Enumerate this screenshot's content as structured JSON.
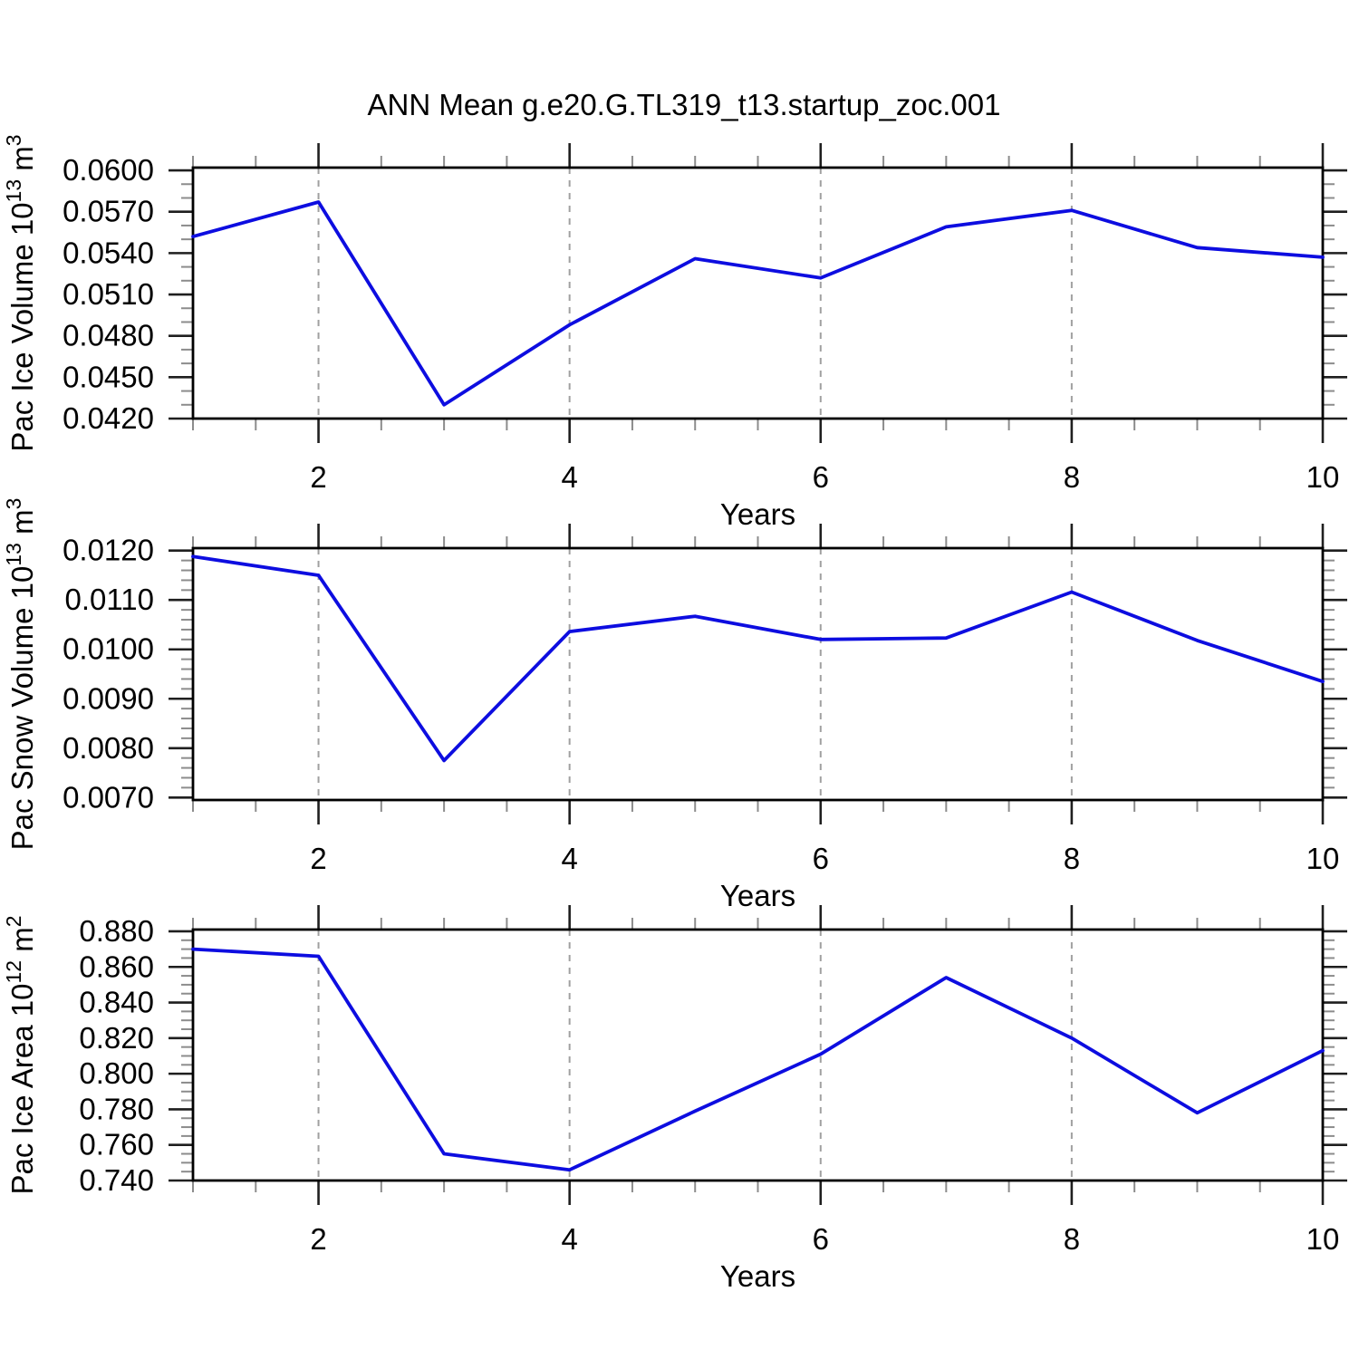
{
  "title": "ANN Mean g.e20.G.TL319_t13.startup_zoc.001",
  "colors": {
    "line": "#0d0de0",
    "plot_border": "#000000",
    "major_tick": "#1f1f1f",
    "minor_tick": "#8c8c8c",
    "gridline": "#a0a0a0",
    "text": "#000000",
    "background": "#ffffff"
  },
  "chart_data": [
    {
      "type": "line",
      "name": "pac-ice-volume",
      "ylabel": "Pac Ice Volume 10^13 m^3",
      "ylabel_parts": {
        "base": "Pac Ice Volume 10",
        "exp": "13",
        "unit": " m",
        "unit_exp": "3"
      },
      "xlabel": "Years",
      "x": [
        1,
        2,
        3,
        4,
        5,
        6,
        7,
        8,
        9,
        10
      ],
      "values": [
        0.0552,
        0.0577,
        0.043,
        0.0488,
        0.0536,
        0.0522,
        0.0559,
        0.0571,
        0.0544,
        0.0537
      ],
      "xlim": [
        1,
        10
      ],
      "ylim": [
        0.042,
        0.0602
      ],
      "xticks": [
        2,
        4,
        6,
        8,
        10
      ],
      "xtick_labels": [
        "2",
        "4",
        "6",
        "8",
        "10"
      ],
      "x_minor_step": 0.5,
      "ytick_values": [
        0.06,
        0.057,
        0.054,
        0.051,
        0.048,
        0.045,
        0.042
      ],
      "ytick_labels": [
        "0.0600",
        "0.0570",
        "0.0540",
        "0.0510",
        "0.0480",
        "0.0450",
        "0.0420"
      ],
      "y_minor_step": 0.001,
      "gridlines_x": [
        2,
        4,
        6,
        8
      ],
      "grid": "vertical-dashed",
      "legend": "none"
    },
    {
      "type": "line",
      "name": "pac-snow-volume",
      "ylabel": "Pac Snow Volume 10^13 m^3",
      "ylabel_parts": {
        "base": "Pac Snow Volume 10",
        "exp": "13",
        "unit": " m",
        "unit_exp": "3"
      },
      "xlabel": "Years",
      "x": [
        1,
        2,
        3,
        4,
        5,
        6,
        7,
        8,
        9,
        10
      ],
      "values": [
        0.01188,
        0.0115,
        0.00775,
        0.01036,
        0.01067,
        0.0102,
        0.01023,
        0.01116,
        0.01018,
        0.00935
      ],
      "xlim": [
        1,
        10
      ],
      "ylim": [
        0.00695,
        0.01205
      ],
      "xticks": [
        2,
        4,
        6,
        8,
        10
      ],
      "xtick_labels": [
        "2",
        "4",
        "6",
        "8",
        "10"
      ],
      "x_minor_step": 0.5,
      "ytick_values": [
        0.012,
        0.011,
        0.01,
        0.009,
        0.008,
        0.007
      ],
      "ytick_labels": [
        "0.0120",
        "0.0110",
        "0.0100",
        "0.0090",
        "0.0080",
        "0.0070"
      ],
      "y_minor_step": 0.0002,
      "gridlines_x": [
        2,
        4,
        6,
        8
      ],
      "grid": "vertical-dashed",
      "legend": "none"
    },
    {
      "type": "line",
      "name": "pac-ice-area",
      "ylabel": "Pac Ice Area 10^12 m^2",
      "ylabel_parts": {
        "base": "Pac Ice Area 10",
        "exp": "12",
        "unit": " m",
        "unit_exp": "2"
      },
      "xlabel": "Years",
      "x": [
        1,
        2,
        3,
        4,
        5,
        6,
        7,
        8,
        9,
        10
      ],
      "values": [
        0.87,
        0.866,
        0.755,
        0.746,
        0.779,
        0.811,
        0.854,
        0.82,
        0.778,
        0.813
      ],
      "xlim": [
        1,
        10
      ],
      "ylim": [
        0.74,
        0.881
      ],
      "xticks": [
        2,
        4,
        6,
        8,
        10
      ],
      "xtick_labels": [
        "2",
        "4",
        "6",
        "8",
        "10"
      ],
      "x_minor_step": 0.5,
      "ytick_values": [
        0.88,
        0.86,
        0.84,
        0.82,
        0.8,
        0.78,
        0.76,
        0.74
      ],
      "ytick_labels": [
        "0.880",
        "0.860",
        "0.840",
        "0.820",
        "0.800",
        "0.780",
        "0.760",
        "0.740"
      ],
      "y_minor_step": 0.005,
      "gridlines_x": [
        2,
        4,
        6,
        8
      ],
      "grid": "vertical-dashed",
      "legend": "none"
    }
  ]
}
